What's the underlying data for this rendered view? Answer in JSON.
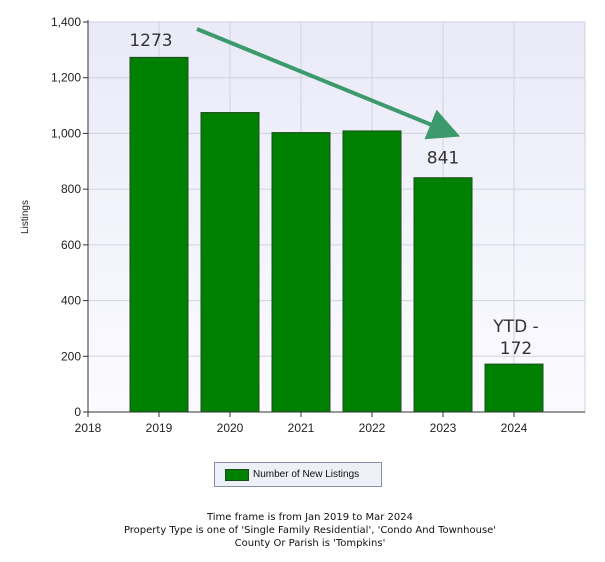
{
  "chart_data": {
    "type": "bar",
    "ylabel": "Listings",
    "xlabel": "",
    "categories": [
      "2019",
      "2020",
      "2021",
      "2022",
      "2023",
      "2024"
    ],
    "x_ticks": [
      "2018",
      "2019",
      "2020",
      "2021",
      "2022",
      "2023",
      "2024"
    ],
    "series": [
      {
        "name": "Number of New Listings",
        "values": [
          1273,
          1075,
          1003,
          1009,
          841,
          172
        ]
      }
    ],
    "ylim": [
      0,
      1400
    ],
    "y_ticks": [
      "0",
      "200",
      "400",
      "600",
      "800",
      "1,000",
      "1,200",
      "1,400"
    ],
    "grid": true,
    "legend": "bottom",
    "annotations": [
      {
        "text": "1273",
        "category": "2019"
      },
      {
        "text": "841",
        "category": "2023"
      },
      {
        "lines": [
          "YTD -",
          "172"
        ],
        "category": "2024"
      }
    ],
    "trend_arrow": {
      "from_category": "2019",
      "to_category": "2023"
    },
    "colors": {
      "bar": "#008000",
      "bar_edge": "#1f4a1f",
      "arrow": "#3c9a6c",
      "plot_bg": "#f3f3fb",
      "grid": "#cfd2de"
    }
  },
  "notes": [
    "Time frame is from Jan 2019 to Mar 2024",
    "Property Type is one of 'Single Family Residential', 'Condo And Townhouse'",
    "County Or Parish is 'Tompkins'"
  ]
}
